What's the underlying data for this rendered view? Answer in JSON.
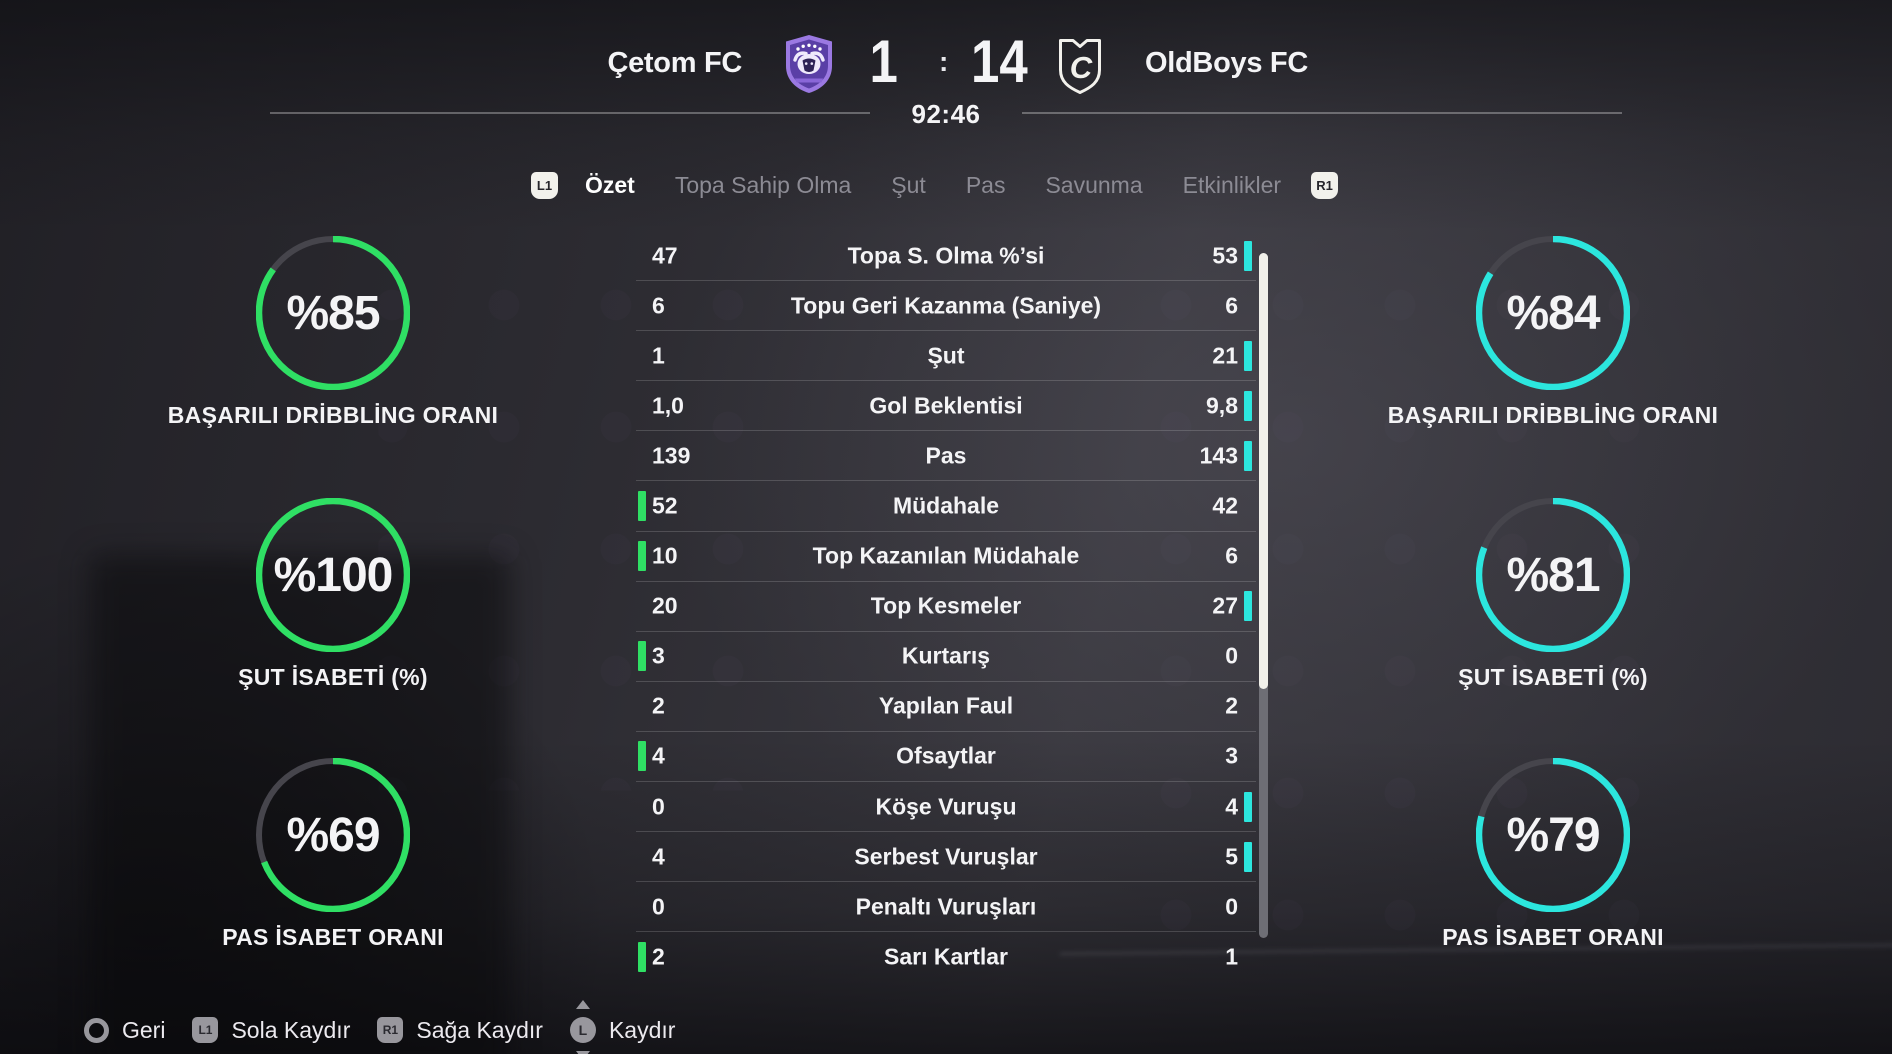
{
  "header": {
    "home_name": "Çetom FC",
    "away_name": "OldBoys FC",
    "home_score": "1",
    "away_score": "14",
    "separator": ":",
    "time": "92:46"
  },
  "tabs": {
    "l1_badge": "L1",
    "r1_badge": "R1",
    "items": [
      {
        "label": "Özet",
        "active": true
      },
      {
        "label": "Topa Sahip Olma",
        "active": false
      },
      {
        "label": "Şut",
        "active": false
      },
      {
        "label": "Pas",
        "active": false
      },
      {
        "label": "Savunma",
        "active": false
      },
      {
        "label": "Etkinlikler",
        "active": false
      }
    ]
  },
  "gauges": {
    "home": [
      {
        "value": "%85",
        "percent": 85,
        "label": "BAŞARILI DRİBBLİNG ORANI"
      },
      {
        "value": "%100",
        "percent": 100,
        "label": "ŞUT İSABETİ (%)"
      },
      {
        "value": "%69",
        "percent": 69,
        "label": "PAS İSABET ORANI"
      }
    ],
    "away": [
      {
        "value": "%84",
        "percent": 84,
        "label": "BAŞARILI DRİBBLİNG ORANI"
      },
      {
        "value": "%81",
        "percent": 81,
        "label": "ŞUT İSABETİ (%)"
      },
      {
        "value": "%79",
        "percent": 79,
        "label": "PAS İSABET ORANI"
      }
    ]
  },
  "stats_table": {
    "rows": [
      {
        "home": "47",
        "label": "Topa S. Olma %’si",
        "away": "53",
        "leader": "away"
      },
      {
        "home": "6",
        "label": "Topu Geri Kazanma (Saniye)",
        "away": "6",
        "leader": "none"
      },
      {
        "home": "1",
        "label": "Şut",
        "away": "21",
        "leader": "away"
      },
      {
        "home": "1,0",
        "label": "Gol Beklentisi",
        "away": "9,8",
        "leader": "away"
      },
      {
        "home": "139",
        "label": "Pas",
        "away": "143",
        "leader": "away"
      },
      {
        "home": "52",
        "label": "Müdahale",
        "away": "42",
        "leader": "home"
      },
      {
        "home": "10",
        "label": "Top Kazanılan Müdahale",
        "away": "6",
        "leader": "home"
      },
      {
        "home": "20",
        "label": "Top Kesmeler",
        "away": "27",
        "leader": "away"
      },
      {
        "home": "3",
        "label": "Kurtarış",
        "away": "0",
        "leader": "home"
      },
      {
        "home": "2",
        "label": "Yapılan Faul",
        "away": "2",
        "leader": "none"
      },
      {
        "home": "4",
        "label": "Ofsaytlar",
        "away": "3",
        "leader": "home"
      },
      {
        "home": "0",
        "label": "Köşe Vuruşu",
        "away": "4",
        "leader": "away"
      },
      {
        "home": "4",
        "label": "Serbest Vuruşlar",
        "away": "5",
        "leader": "away"
      },
      {
        "home": "0",
        "label": "Penaltı Vuruşları",
        "away": "0",
        "leader": "none"
      },
      {
        "home": "2",
        "label": "Sarı Kartlar",
        "away": "1",
        "leader": "home"
      }
    ]
  },
  "footer": {
    "controls": [
      {
        "icon": "circle-button",
        "key": "O",
        "label": "Geri"
      },
      {
        "icon": "l1-bumper",
        "key": "L1",
        "label": "Sola Kaydır"
      },
      {
        "icon": "r1-bumper",
        "key": "R1",
        "label": "Sağa Kaydır"
      },
      {
        "icon": "left-stick",
        "key": "L",
        "label": "Kaydır"
      }
    ]
  },
  "colors": {
    "home_accent": "#2fdf64",
    "away_accent": "#2ce6de",
    "ring_track": "#46454c"
  }
}
